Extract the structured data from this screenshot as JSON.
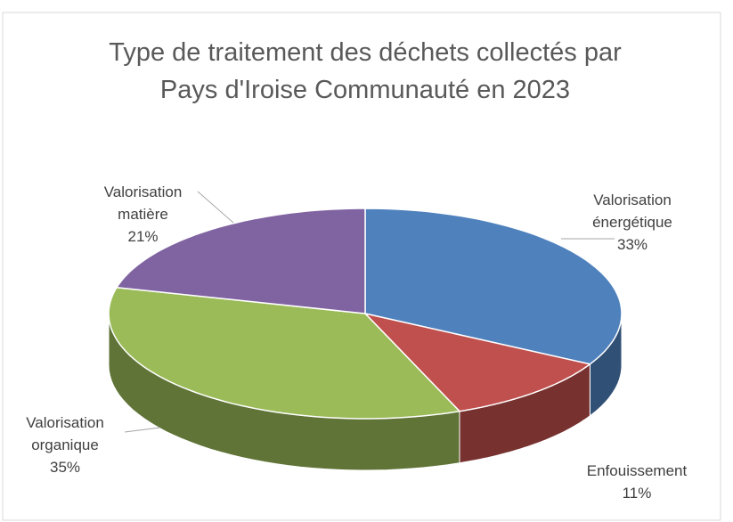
{
  "chart_data": {
    "type": "pie",
    "title": "Type de traitement des déchets collectés par Pays d'Iroise Communauté en 2023",
    "categories": [
      "Valorisation énergétique",
      "Enfouissement",
      "Valorisation organique",
      "Valorisation matière"
    ],
    "values": [
      33,
      11,
      35,
      21
    ],
    "value_labels": [
      "33%",
      "11%",
      "35%",
      "21%"
    ],
    "colors": [
      "#4f81bd",
      "#c0504d",
      "#9bbb59",
      "#8064a2"
    ]
  }
}
